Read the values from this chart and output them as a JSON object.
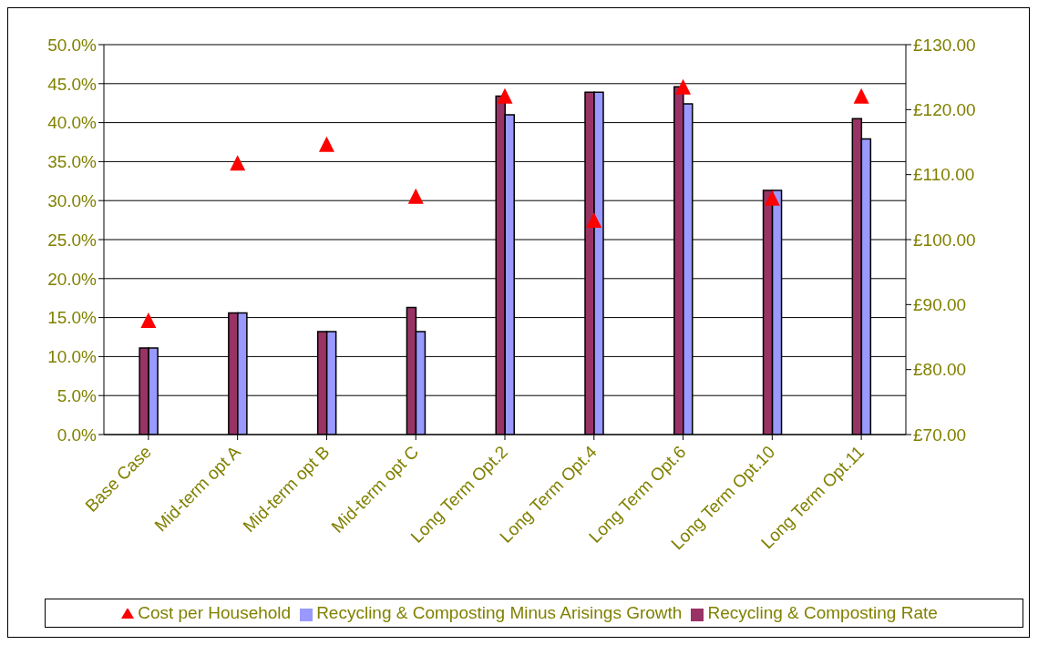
{
  "chart_data": {
    "type": "bar",
    "categories": [
      "Base Case",
      "Mid-term opt A",
      "Mid-term opt B",
      "Mid-term opt C",
      "Long Term Opt.2",
      "Long Term Opt.4",
      "Long Term Opt.6",
      "Long Term Opt.10",
      "Long Term Opt.11"
    ],
    "series": [
      {
        "name": "Recycling & Composting Rate",
        "color": "#993366",
        "values": [
          11.1,
          15.6,
          13.2,
          16.3,
          43.4,
          43.9,
          44.6,
          31.3,
          40.5
        ]
      },
      {
        "name": "Recycling & Composting Minus Arisings Growth",
        "color": "#9999ff",
        "values": [
          11.1,
          15.6,
          13.2,
          13.2,
          41.0,
          43.9,
          42.4,
          31.3,
          37.9
        ]
      },
      {
        "name": "Cost per Household",
        "type": "scatter",
        "axis": "y2",
        "color": "#ff0000",
        "marker": "triangle",
        "values": [
          87.6,
          111.8,
          114.7,
          106.7,
          122.1,
          103.0,
          123.5,
          106.4,
          122.1
        ]
      }
    ],
    "ylim": [
      0,
      50
    ],
    "yticks": [
      {
        "value": 0,
        "label": "0.0%"
      },
      {
        "value": 5,
        "label": "5.0%"
      },
      {
        "value": 10,
        "label": "10.0%"
      },
      {
        "value": 15,
        "label": "15.0%"
      },
      {
        "value": 20,
        "label": "20.0%"
      },
      {
        "value": 25,
        "label": "25.0%"
      },
      {
        "value": 30,
        "label": "30.0%"
      },
      {
        "value": 35,
        "label": "35.0%"
      },
      {
        "value": 40,
        "label": "40.0%"
      },
      {
        "value": 45,
        "label": "45.0%"
      },
      {
        "value": 50,
        "label": "50.0%"
      }
    ],
    "y2lim": [
      70,
      130
    ],
    "y2ticks": [
      {
        "value": 70,
        "label": "£70.00"
      },
      {
        "value": 80,
        "label": "£80.00"
      },
      {
        "value": 90,
        "label": "£90.00"
      },
      {
        "value": 100,
        "label": "£100.00"
      },
      {
        "value": 110,
        "label": "£110.00"
      },
      {
        "value": 120,
        "label": "£120.00"
      },
      {
        "value": 130,
        "label": "£130.00"
      }
    ],
    "grid": "y",
    "legend": "bottom"
  }
}
